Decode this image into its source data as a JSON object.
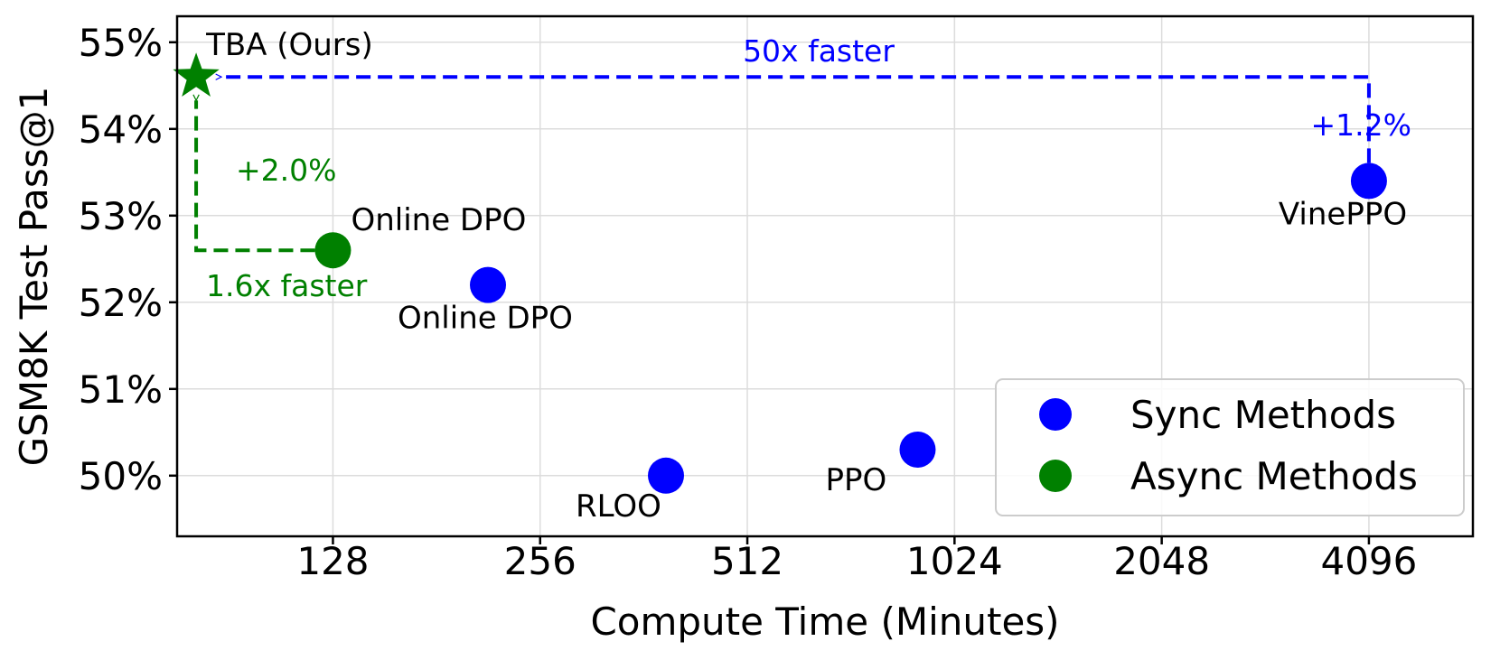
{
  "chart_data": {
    "type": "scatter",
    "title": "",
    "xlabel": "Compute Time (Minutes)",
    "ylabel": "GSM8K Test Pass@1",
    "x_scale": "log2",
    "x_ticks": [
      128,
      256,
      512,
      1024,
      2048,
      4096
    ],
    "x_tick_labels": [
      "128",
      "256",
      "512",
      "1024",
      "2048",
      "4096"
    ],
    "xlim": [
      76,
      5800
    ],
    "y_ticks": [
      50,
      51,
      52,
      53,
      54,
      55
    ],
    "y_tick_labels": [
      "50%",
      "51%",
      "52%",
      "53%",
      "54%",
      "55%"
    ],
    "ylim": [
      49.3,
      55.3
    ],
    "grid": true,
    "legend_position": "lower-right",
    "series": [
      {
        "name": "Sync Methods",
        "color": "#0000ff",
        "marker": "circle",
        "points": [
          {
            "label": "Online DPO",
            "x": 215,
            "y": 52.2
          },
          {
            "label": "RLOO",
            "x": 390,
            "y": 50.0
          },
          {
            "label": "PPO",
            "x": 905,
            "y": 50.3
          },
          {
            "label": "VinePPO",
            "x": 4096,
            "y": 53.4
          }
        ]
      },
      {
        "name": "Async Methods",
        "color": "#008000",
        "marker": "circle",
        "points": [
          {
            "label": "Online DPO",
            "x": 128,
            "y": 52.6
          }
        ]
      }
    ],
    "highlight": {
      "label": "TBA (Ours)",
      "x": 81,
      "y": 54.6,
      "color": "#008000",
      "marker": "star"
    },
    "annotations": [
      {
        "text": "50x faster",
        "color": "#0000ff"
      },
      {
        "text": "+1.2%",
        "color": "#0000ff"
      },
      {
        "text": "+2.0%",
        "color": "#008000"
      },
      {
        "text": "1.6x faster",
        "color": "#008000"
      }
    ]
  }
}
